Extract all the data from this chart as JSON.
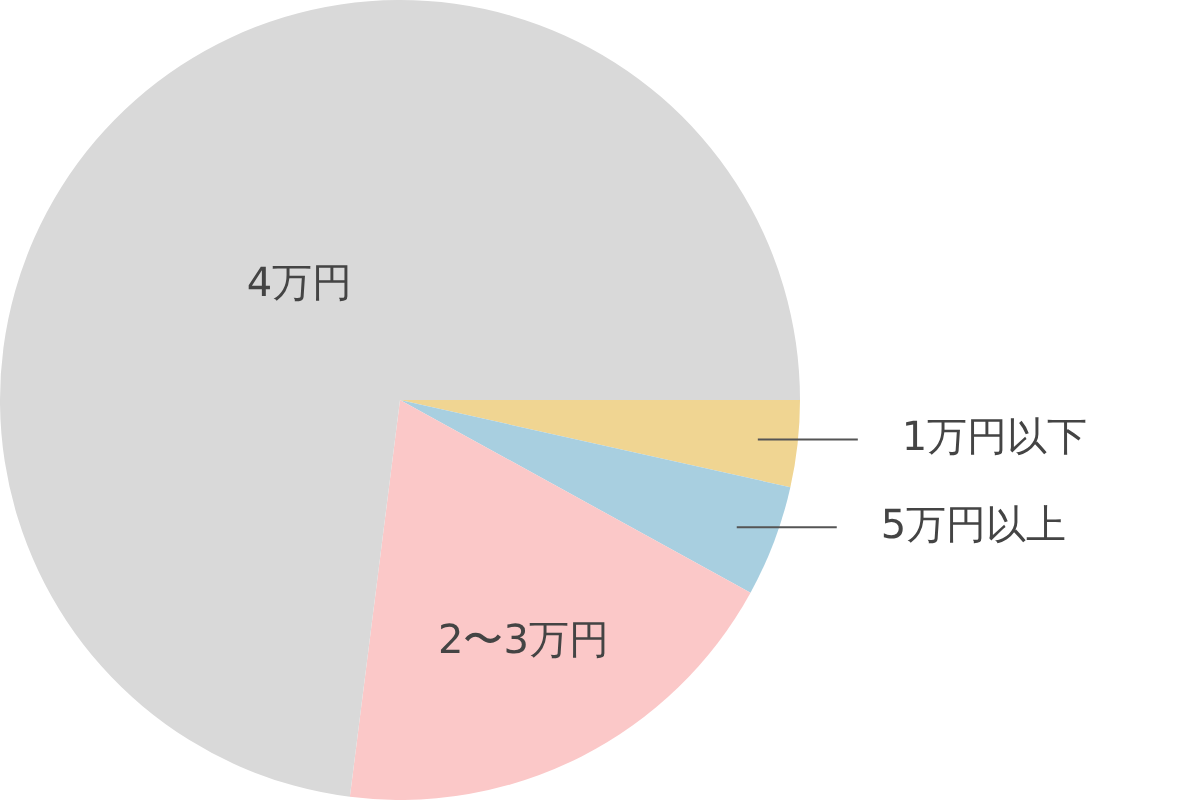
{
  "chart_data": {
    "type": "pie",
    "categories": [
      "1万円以下",
      "5万円以上",
      "2〜3万円",
      "4万円"
    ],
    "values": [
      3.5,
      4.5,
      19,
      73
    ],
    "colors": [
      "#f0d592",
      "#a8cfe0",
      "#fbc8c8",
      "#d9d9d9"
    ],
    "legend": false
  }
}
